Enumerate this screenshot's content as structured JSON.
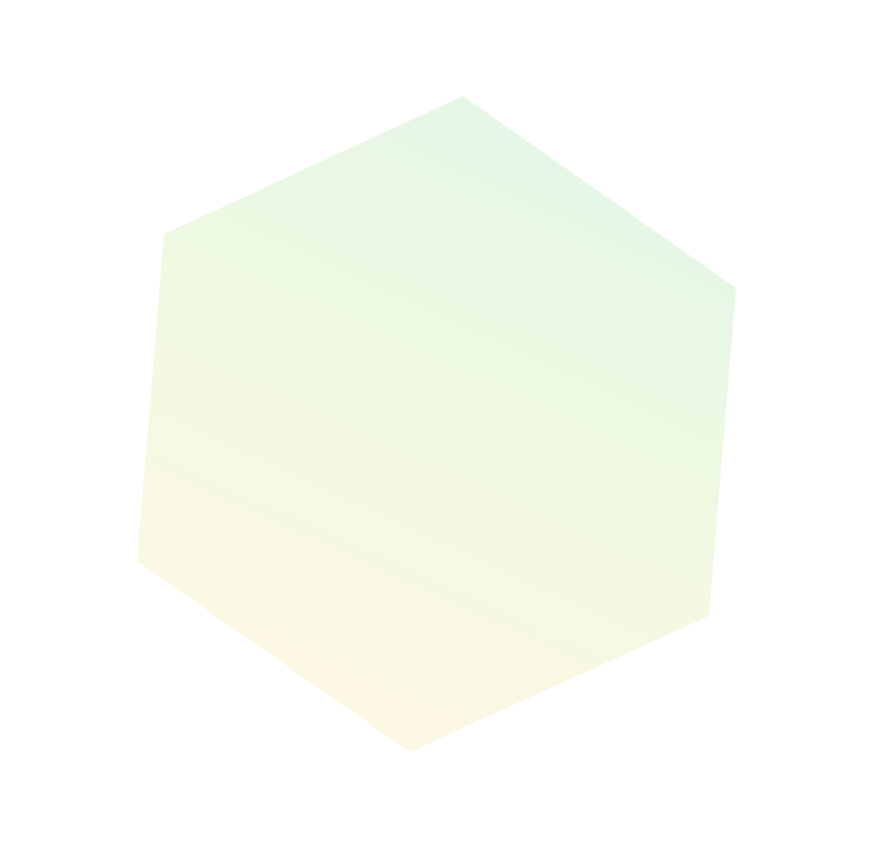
{
  "shape": {
    "kind": "hexagon",
    "gradient": {
      "start_color": "#fff8e4",
      "mid_color": "#f1f9e2",
      "end_color": "#e1f8e6"
    }
  }
}
